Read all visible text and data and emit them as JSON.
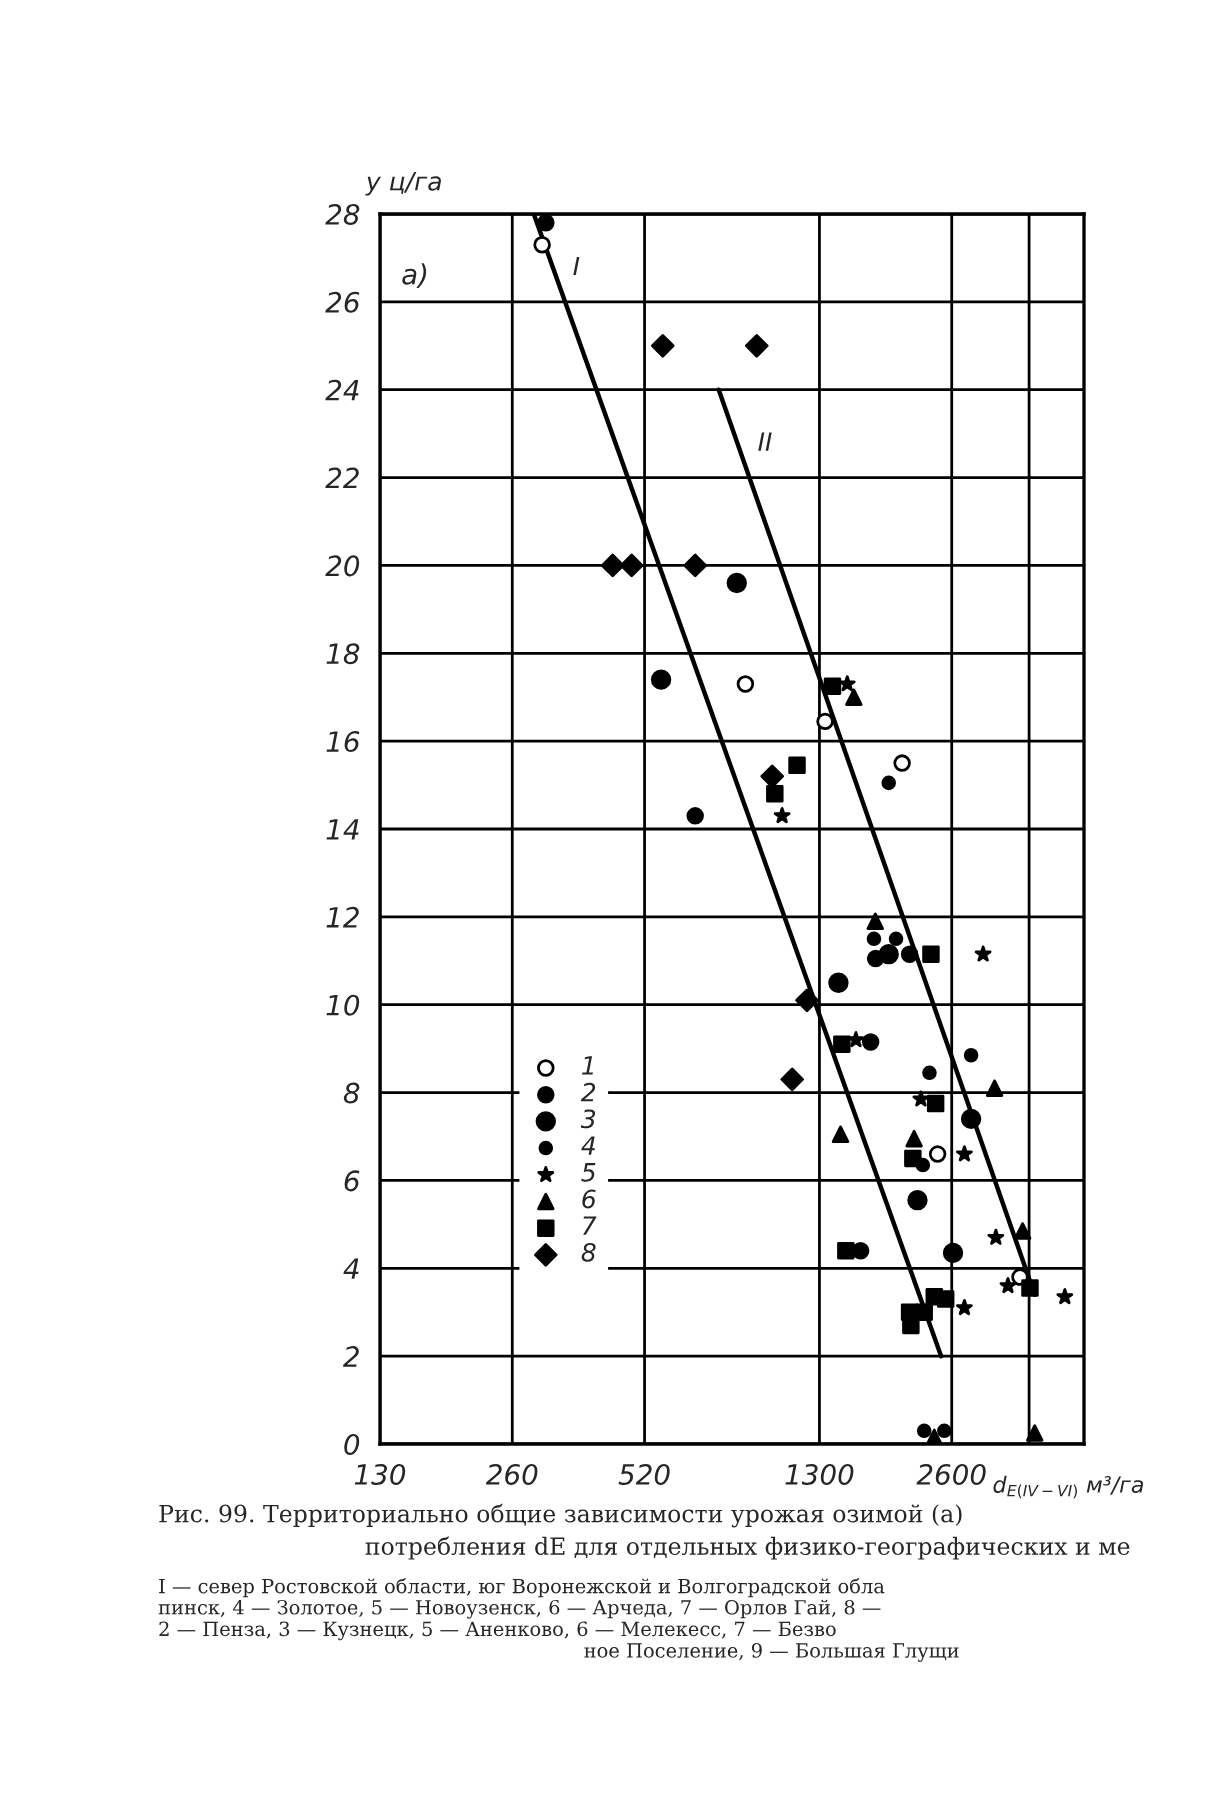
{
  "chart_data": {
    "type": "scatter",
    "ylabel": "у ц/га",
    "xlabel": "d$_{E(IV−VI)}$ м³/га",
    "log": "x",
    "xlim": [
      130,
      5200
    ],
    "xticks": [
      130,
      260,
      520,
      1300,
      2600,
      {
        "value": 3900,
        "label": null
      }
    ],
    "ylim": [
      0,
      28
    ],
    "yticks": [
      0,
      2,
      4,
      6,
      8,
      10,
      12,
      14,
      16,
      18,
      20,
      22,
      24,
      26,
      28
    ],
    "grid": true,
    "legend": "left",
    "annotations": [
      "а)",
      "Рис. 99. Территориально общие зависимости урожая озимой (а)",
      "потребления dE для отдельных физико-географических и ме",
      "I — север Ростовской области, юг Воронежской и Волгоградской обла",
      "пинск, 4 — Золотое, 5 — Новоузенск, 6 — Арчеда, 7 — Орлов Гай, 8 —",
      "2 — Пенза, 3 — Кузнецк, 5 — Аненково, 6 — Мелекесс, 7 — Безво",
      "ное Поселение, 9 — Большая Глущи"
    ],
    "series": [
      {
        "name": "1",
        "color": "#000000",
        "marker": "circle",
        "x": [
          304,
          882,
          1339,
          2005,
          2415,
          3718
        ],
        "values": [
          27.3,
          17.3,
          16.45,
          15.5,
          6.6,
          3.8
        ]
      },
      {
        "name": "2",
        "color": "#000000",
        "marker": "circle",
        "x": [
          310,
          678,
          1745,
          2085,
          1700,
          1613
        ],
        "values": [
          27.8,
          14.3,
          11.05,
          11.15,
          9.15,
          4.4
        ]
      },
      {
        "name": "3",
        "color": "#000000",
        "marker": "circle",
        "x": [
          843,
          567,
          1869,
          1436,
          2878,
          2173,
          2618
        ],
        "values": [
          19.6,
          17.4,
          11.15,
          10.5,
          7.4,
          5.55,
          4.35
        ]
      },
      {
        "name": "4",
        "color": "#000000",
        "marker": "circle",
        "x": [
          1869,
          1730,
          1942,
          2878,
          2314,
          2235,
          2251,
          2501
        ],
        "values": [
          15.05,
          11.5,
          11.5,
          8.85,
          8.45,
          6.35,
          0.3,
          0.3
        ]
      },
      {
        "name": "5",
        "color": "#000000",
        "marker": "star",
        "x": [
          1504,
          1069,
          3065,
          1574,
          2212,
          2779,
          3277,
          3491,
          4703,
          2779
        ],
        "values": [
          17.3,
          14.3,
          11.15,
          9.2,
          7.85,
          6.6,
          4.7,
          3.6,
          3.35,
          3.1
        ]
      },
      {
        "name": "6",
        "color": "#000000",
        "marker": "triangle",
        "x": [
          1557,
          1742,
          3255,
          1452,
          2135,
          3770,
          2373,
          4017
        ],
        "values": [
          17.0,
          11.9,
          8.1,
          7.05,
          6.95,
          4.85,
          0.15,
          0.25
        ]
      },
      {
        "name": "7",
        "color": "#000000",
        "marker": "square",
        "x": [
          1392,
          1156,
          1029,
          2332,
          1462,
          2390,
          2121,
          1493,
          3918,
          2373,
          2519,
          2085,
          2251,
          2099
        ],
        "values": [
          17.25,
          15.45,
          14.8,
          11.15,
          9.1,
          7.75,
          6.5,
          4.4,
          3.55,
          3.35,
          3.3,
          3.0,
          3.0,
          2.7
        ]
      },
      {
        "name": "8",
        "color": "#000000",
        "marker": "diamond",
        "x": [
          572,
          936,
          440,
          486,
          678,
          1015,
          1218,
          1127
        ],
        "values": [
          25,
          25,
          20,
          20,
          20,
          15.2,
          10.1,
          8.3
        ]
      },
      {
        "name": "I",
        "type": "line",
        "color": "#000000",
        "marker": "none",
        "x": [
          291,
          2460
        ],
        "values": [
          28,
          2
        ]
      },
      {
        "name": "II",
        "type": "line",
        "color": "#000000",
        "marker": "none",
        "x": [
          767,
          4017
        ],
        "values": [
          24,
          3.4
        ]
      }
    ]
  }
}
